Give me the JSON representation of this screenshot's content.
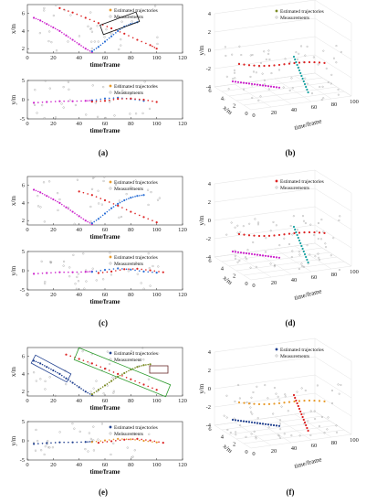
{
  "panels": [
    {
      "caption": "(a)",
      "top": {
        "ylabel": "x/m",
        "xlabel": "time/frame",
        "legend": [
          "Estimated trajectories",
          "Measurements"
        ],
        "yticks": [
          "2",
          "4",
          "6"
        ],
        "xticks": [
          "0",
          "20",
          "40",
          "60",
          "80",
          "100",
          "120"
        ]
      },
      "bottom": {
        "ylabel": "y/m",
        "xlabel": "time/frame",
        "legend": [
          "Estimated trajectories",
          "Measurements"
        ],
        "yticks": [
          "-5",
          "0",
          "5"
        ],
        "xticks": [
          "0",
          "20",
          "40",
          "60",
          "80",
          "100",
          "120"
        ]
      }
    },
    {
      "caption": "(b)",
      "legend": [
        "Estimated trajectories",
        "Measurements"
      ],
      "zlabel": "y/m",
      "xlabel": "x/m",
      "tlabel": "time/frame",
      "zticks": [
        "4",
        "2",
        "0",
        "-2",
        "-4"
      ],
      "xticks": [
        "0",
        "2",
        "4",
        "6"
      ],
      "tticks": [
        "0",
        "20",
        "40",
        "60",
        "80",
        "100"
      ]
    },
    {
      "caption": "(c)",
      "top": {
        "ylabel": "x/m",
        "xlabel": "time/frame",
        "legend": [
          "Estimated trajectories",
          "Measurements"
        ],
        "yticks": [
          "2",
          "4",
          "6"
        ],
        "xticks": [
          "0",
          "20",
          "40",
          "60",
          "80",
          "100",
          "120"
        ]
      },
      "bottom": {
        "ylabel": "y/m",
        "xlabel": "time/frame",
        "legend": [
          "Estimated trajectories",
          "Measurements"
        ],
        "yticks": [
          "-5",
          "0",
          "5"
        ],
        "xticks": [
          "0",
          "20",
          "40",
          "60",
          "80",
          "100",
          "120"
        ]
      }
    },
    {
      "caption": "(d)",
      "legend": [
        "Estimated trajectories",
        "Measurements"
      ],
      "zlabel": "y/m",
      "xlabel": "x/m",
      "tlabel": "time/frame",
      "zticks": [
        "4",
        "2",
        "0",
        "-2",
        "-4"
      ],
      "xticks": [
        "0",
        "2",
        "4",
        "6"
      ],
      "tticks": [
        "0",
        "20",
        "40",
        "60",
        "80",
        "100"
      ]
    },
    {
      "caption": "(e)",
      "top": {
        "ylabel": "x/m",
        "xlabel": "time/frame",
        "legend": [
          "Estimated trajectories",
          "Measurement"
        ],
        "yticks": [
          "2",
          "4",
          "6"
        ],
        "xticks": [
          "0",
          "20",
          "40",
          "60",
          "80",
          "100",
          "120"
        ]
      },
      "bottom": {
        "ylabel": "y/m",
        "xlabel": "time/frame",
        "legend": [
          "Estimated trajectories",
          "Measurements"
        ],
        "yticks": [
          "-5",
          "0",
          "5"
        ],
        "xticks": [
          "0",
          "20",
          "40",
          "60",
          "80",
          "100",
          "120"
        ]
      }
    },
    {
      "caption": "(f)",
      "legend": [
        "Estimated trajectories",
        "Measurements"
      ],
      "zlabel": "y/m",
      "xlabel": "x/m",
      "tlabel": "time/frame",
      "zticks": [
        "4",
        "2",
        "0",
        "-2",
        "-4"
      ],
      "xticks": [
        "0",
        "2",
        "4",
        "6"
      ],
      "tticks": [
        "0",
        "20",
        "40",
        "60",
        "80",
        "100"
      ]
    }
  ],
  "colors": {
    "magenta": "#cc22cc",
    "red": "#dd2222",
    "blue": "#2a6fd6",
    "teal": "#1aa3a3",
    "orange": "#e89a2a",
    "olive": "#7a8a22",
    "navy": "#1f3f8f",
    "gray": "#999999",
    "green": "#2a9a2a",
    "black": "#111111"
  },
  "chart_data": [
    {
      "type": "scatter",
      "panel": "a-top",
      "xlabel": "time/frame",
      "ylabel": "x/m",
      "xlim": [
        0,
        120
      ],
      "ylim": [
        1.5,
        7
      ],
      "series": [
        {
          "color": "magenta",
          "x": [
            5,
            10,
            15,
            20,
            25,
            30,
            35,
            40,
            45,
            50
          ],
          "y": [
            5.5,
            5.2,
            4.8,
            4.4,
            4.0,
            3.5,
            3.0,
            2.5,
            2.0,
            1.6
          ]
        },
        {
          "color": "blue",
          "x": [
            50,
            55,
            60,
            65,
            70,
            75,
            80,
            85
          ],
          "y": [
            1.7,
            2.2,
            2.8,
            3.4,
            4.0,
            4.5,
            4.8,
            5.0
          ]
        },
        {
          "color": "red",
          "x": [
            25,
            35,
            45,
            55,
            65,
            75,
            85,
            95,
            100
          ],
          "y": [
            6.6,
            6.1,
            5.5,
            4.9,
            4.3,
            3.7,
            3.0,
            2.4,
            2.0
          ]
        }
      ]
    },
    {
      "type": "scatter",
      "panel": "a-bottom",
      "xlabel": "time/frame",
      "ylabel": "y/m",
      "xlim": [
        0,
        120
      ],
      "ylim": [
        -5,
        5
      ],
      "series": [
        {
          "color": "magenta",
          "x": [
            5,
            15,
            25,
            35,
            45,
            50
          ],
          "y": [
            -0.8,
            -0.6,
            -0.4,
            -0.4,
            -0.3,
            -0.2
          ]
        },
        {
          "color": "blue",
          "x": [
            50,
            60,
            70,
            80,
            90
          ],
          "y": [
            -0.2,
            0.3,
            0.5,
            0.2,
            -0.3
          ]
        },
        {
          "color": "red",
          "x": [
            50,
            60,
            70,
            80,
            90,
            100
          ],
          "y": [
            -0.5,
            -0.3,
            0.2,
            0.3,
            0.0,
            -0.6
          ]
        }
      ]
    },
    {
      "type": "scatter",
      "panel": "c-top",
      "xlabel": "time/frame",
      "ylabel": "x/m",
      "xlim": [
        0,
        120
      ],
      "ylim": [
        1.5,
        7
      ],
      "series": [
        {
          "color": "magenta",
          "x": [
            5,
            10,
            15,
            20,
            25,
            30,
            35,
            40,
            45,
            50
          ],
          "y": [
            5.5,
            5.2,
            4.8,
            4.4,
            4.0,
            3.5,
            3.0,
            2.5,
            2.0,
            1.6
          ]
        },
        {
          "color": "blue",
          "x": [
            50,
            55,
            60,
            65,
            70,
            75,
            80,
            85,
            90
          ],
          "y": [
            1.7,
            2.2,
            2.8,
            3.4,
            3.9,
            4.3,
            4.6,
            4.8,
            4.9
          ]
        },
        {
          "color": "red",
          "x": [
            40,
            50,
            60,
            70,
            80,
            90,
            100
          ],
          "y": [
            5.3,
            4.9,
            4.3,
            3.7,
            3.0,
            2.4,
            1.8
          ]
        }
      ]
    },
    {
      "type": "scatter",
      "panel": "c-bottom",
      "xlabel": "time/frame",
      "ylabel": "y/m",
      "xlim": [
        0,
        120
      ],
      "ylim": [
        -5,
        5
      ],
      "series": [
        {
          "color": "magenta",
          "x": [
            5,
            15,
            25,
            35,
            45,
            50
          ],
          "y": [
            -0.8,
            -0.6,
            -0.4,
            -0.4,
            -0.3,
            -0.2
          ]
        },
        {
          "color": "blue",
          "x": [
            50,
            60,
            70,
            80,
            90,
            100
          ],
          "y": [
            -0.3,
            0.2,
            0.6,
            0.3,
            -0.2,
            -0.5
          ]
        },
        {
          "color": "red",
          "x": [
            55,
            65,
            75,
            85,
            95,
            105
          ],
          "y": [
            -0.6,
            -0.2,
            0.4,
            0.5,
            0.1,
            -0.4
          ]
        }
      ]
    },
    {
      "type": "scatter",
      "panel": "e-top",
      "xlabel": "time/frame",
      "ylabel": "x/m",
      "xlim": [
        0,
        120
      ],
      "ylim": [
        1.5,
        7
      ],
      "series": [
        {
          "color": "navy",
          "x": [
            5,
            10,
            15,
            20,
            25,
            30,
            35,
            40,
            45,
            50
          ],
          "y": [
            5.5,
            5.2,
            4.8,
            4.4,
            4.0,
            3.5,
            3.0,
            2.5,
            2.0,
            1.6
          ]
        },
        {
          "color": "olive",
          "x": [
            50,
            55,
            60,
            65,
            70,
            75,
            80,
            85,
            90,
            95
          ],
          "y": [
            1.7,
            2.2,
            2.7,
            3.2,
            3.7,
            4.1,
            4.5,
            4.8,
            5.0,
            5.1
          ]
        },
        {
          "color": "red",
          "x": [
            30,
            40,
            50,
            60,
            70,
            80,
            90,
            100
          ],
          "y": [
            6.2,
            5.7,
            5.2,
            4.6,
            4.0,
            3.4,
            2.8,
            2.2
          ]
        }
      ]
    },
    {
      "type": "scatter",
      "panel": "e-bottom",
      "xlabel": "time/frame",
      "ylabel": "y/m",
      "xlim": [
        0,
        120
      ],
      "ylim": [
        -5,
        5
      ],
      "series": [
        {
          "color": "navy",
          "x": [
            5,
            15,
            25,
            35,
            45,
            50
          ],
          "y": [
            -0.8,
            -0.6,
            -0.4,
            -0.4,
            -0.3,
            -0.2
          ]
        },
        {
          "color": "orange",
          "x": [
            50,
            60,
            70,
            80,
            90,
            100
          ],
          "y": [
            -0.3,
            0.1,
            0.5,
            0.4,
            0.0,
            -0.4
          ]
        },
        {
          "color": "red",
          "x": [
            55,
            65,
            75,
            85,
            95,
            105
          ],
          "y": [
            -0.5,
            -0.1,
            0.3,
            0.5,
            0.1,
            -0.5
          ]
        }
      ]
    }
  ]
}
